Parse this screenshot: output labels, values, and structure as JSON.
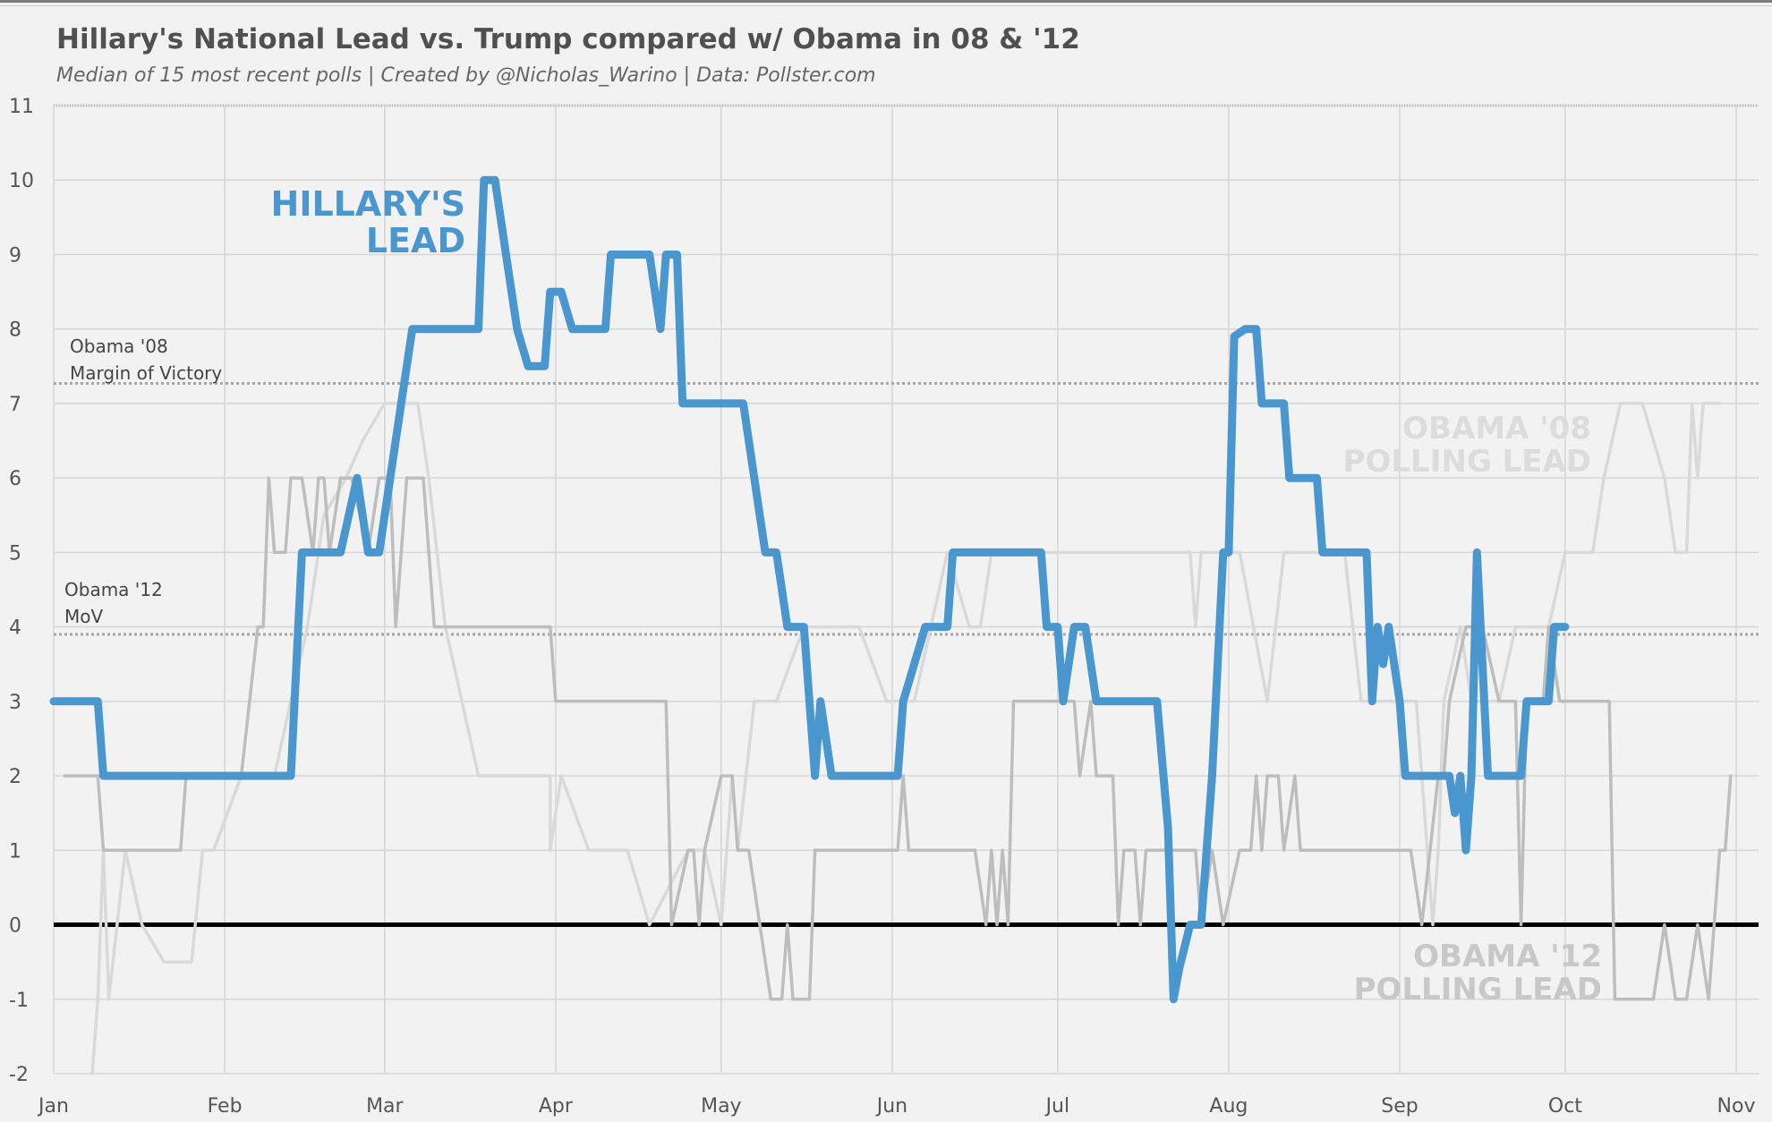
{
  "title": "Hillary's National Lead vs. Trump compared w/ Obama in 08 & '12",
  "subtitle": "Median of 15 most recent polls | Created by @Nicholas_Warino | Data: Pollster.com",
  "colors": {
    "hillary": "#4a97cf",
    "obama08": "#d9d9d9",
    "obama12": "#bdbdbd",
    "zero": "#000000",
    "grid": "#d6d6d6",
    "ref": "#a6a6a6"
  },
  "chart_data": {
    "type": "line",
    "title": "Hillary's National Lead vs. Trump compared w/ Obama in 08 & '12",
    "subtitle": "Median of 15 most recent polls | Created by @Nicholas_Warino | Data: Pollster.com",
    "xlabel": "",
    "ylabel": "",
    "x_unit": "day of year (Jan 1 = 0)",
    "xlim": [
      0,
      307
    ],
    "ylim": [
      -2,
      11
    ],
    "xticks": [
      {
        "x": 0,
        "label": "Jan"
      },
      {
        "x": 31,
        "label": "Feb"
      },
      {
        "x": 60,
        "label": "Mar"
      },
      {
        "x": 91,
        "label": "Apr"
      },
      {
        "x": 121,
        "label": "May"
      },
      {
        "x": 152,
        "label": "Jun"
      },
      {
        "x": 182,
        "label": "Jul"
      },
      {
        "x": 213,
        "label": "Aug"
      },
      {
        "x": 244,
        "label": "Sep"
      },
      {
        "x": 274,
        "label": "Oct"
      },
      {
        "x": 305,
        "label": "Nov"
      }
    ],
    "yticks": [
      "-2",
      "-1",
      "0",
      "1",
      "2",
      "3",
      "4",
      "5",
      "6",
      "7",
      "8",
      "9",
      "10",
      "11"
    ],
    "grid": true,
    "reference_lines": [
      {
        "y": 7.27,
        "label_lines": [
          "Obama '08",
          "Margin of Victory"
        ]
      },
      {
        "y": 3.9,
        "label_lines": [
          "Obama '12",
          "MoV"
        ]
      },
      {
        "y": 0,
        "label_lines": []
      }
    ],
    "series": [
      {
        "name": "HILLARY'S LEAD",
        "label_lines": [
          "HILLARY'S",
          "LEAD"
        ],
        "points": [
          [
            0,
            3
          ],
          [
            8,
            3
          ],
          [
            9,
            2
          ],
          [
            43,
            2
          ],
          [
            45,
            5
          ],
          [
            52,
            5
          ],
          [
            55,
            6
          ],
          [
            57,
            5
          ],
          [
            59,
            5
          ],
          [
            63,
            7
          ],
          [
            65,
            8
          ],
          [
            77,
            8
          ],
          [
            78,
            10
          ],
          [
            80,
            10
          ],
          [
            82,
            9
          ],
          [
            84,
            8
          ],
          [
            86,
            7.5
          ],
          [
            89,
            7.5
          ],
          [
            90,
            8.5
          ],
          [
            92,
            8.5
          ],
          [
            94,
            8
          ],
          [
            100,
            8
          ],
          [
            101,
            9
          ],
          [
            108,
            9
          ],
          [
            110,
            8
          ],
          [
            111,
            9
          ],
          [
            113,
            9
          ],
          [
            114,
            7
          ],
          [
            125,
            7
          ],
          [
            129,
            5
          ],
          [
            131,
            5
          ],
          [
            133,
            4
          ],
          [
            136,
            4
          ],
          [
            138,
            2
          ],
          [
            139,
            3
          ],
          [
            141,
            2
          ],
          [
            153,
            2
          ],
          [
            154,
            3
          ],
          [
            158,
            4
          ],
          [
            162,
            4
          ],
          [
            163,
            5
          ],
          [
            179,
            5
          ],
          [
            180,
            4
          ],
          [
            182,
            4
          ],
          [
            183,
            3
          ],
          [
            185,
            4
          ],
          [
            187,
            4
          ],
          [
            189,
            3
          ],
          [
            200,
            3
          ],
          [
            202,
            1.3
          ],
          [
            203,
            -1
          ],
          [
            204,
            -0.6
          ],
          [
            206,
            0
          ],
          [
            208,
            0
          ],
          [
            210,
            2
          ],
          [
            212,
            5
          ],
          [
            213,
            5
          ],
          [
            214,
            7.9
          ],
          [
            216,
            8
          ],
          [
            218,
            8
          ],
          [
            219,
            7
          ],
          [
            223,
            7
          ],
          [
            224,
            6
          ],
          [
            229,
            6
          ],
          [
            230,
            5
          ],
          [
            238,
            5
          ],
          [
            239,
            3
          ],
          [
            240,
            4
          ],
          [
            241,
            3.5
          ],
          [
            242,
            4
          ],
          [
            244,
            3
          ],
          [
            245,
            2
          ],
          [
            253,
            2
          ],
          [
            254,
            1.5
          ],
          [
            255,
            2
          ],
          [
            256,
            1
          ],
          [
            257,
            2
          ],
          [
            258,
            5
          ],
          [
            260,
            2
          ],
          [
            266,
            2
          ],
          [
            267,
            3
          ],
          [
            271,
            3
          ],
          [
            272,
            4
          ],
          [
            274,
            4
          ]
        ]
      },
      {
        "name": "OBAMA '08 POLLING LEAD",
        "label_lines": [
          "OBAMA '08",
          "POLLING LEAD"
        ],
        "points": [
          [
            7,
            -2
          ],
          [
            8,
            -1
          ],
          [
            9,
            1
          ],
          [
            10,
            -1
          ],
          [
            13,
            1
          ],
          [
            16,
            0
          ],
          [
            20,
            -0.5
          ],
          [
            25,
            -0.5
          ],
          [
            27,
            1
          ],
          [
            29,
            1
          ],
          [
            34,
            2
          ],
          [
            40,
            2
          ],
          [
            43,
            3
          ],
          [
            46,
            4
          ],
          [
            49,
            5.5
          ],
          [
            53,
            6
          ],
          [
            56,
            6.5
          ],
          [
            60,
            7
          ],
          [
            63,
            7
          ],
          [
            66,
            7
          ],
          [
            68,
            6
          ],
          [
            71,
            4
          ],
          [
            74,
            3
          ],
          [
            77,
            2
          ],
          [
            80,
            2
          ],
          [
            84,
            2
          ],
          [
            90,
            2
          ],
          [
            90,
            1
          ],
          [
            92,
            2
          ],
          [
            97,
            1
          ],
          [
            104,
            1
          ],
          [
            108,
            0
          ],
          [
            115,
            1
          ],
          [
            118,
            1
          ],
          [
            121,
            0
          ],
          [
            123,
            2
          ],
          [
            124,
            1
          ],
          [
            127,
            3
          ],
          [
            131,
            3
          ],
          [
            136,
            4
          ],
          [
            141,
            4
          ],
          [
            146,
            4
          ],
          [
            151,
            3
          ],
          [
            156,
            3
          ],
          [
            159,
            4
          ],
          [
            162,
            5
          ],
          [
            166,
            4
          ],
          [
            168,
            4
          ],
          [
            170,
            5
          ],
          [
            178,
            5
          ],
          [
            183,
            5
          ],
          [
            186,
            5
          ],
          [
            190,
            5
          ],
          [
            203,
            5
          ],
          [
            206,
            5
          ],
          [
            207,
            4
          ],
          [
            208,
            5
          ],
          [
            215,
            5
          ],
          [
            220,
            3
          ],
          [
            223,
            5
          ],
          [
            234,
            5
          ],
          [
            237,
            3
          ],
          [
            245,
            3
          ],
          [
            247,
            3
          ],
          [
            248,
            2
          ],
          [
            249,
            1
          ],
          [
            250,
            0
          ],
          [
            251,
            1
          ],
          [
            252,
            3
          ],
          [
            255,
            4
          ],
          [
            257,
            3
          ],
          [
            262,
            3
          ],
          [
            265,
            4
          ],
          [
            271,
            4
          ],
          [
            274,
            5
          ],
          [
            279,
            5
          ],
          [
            281,
            6
          ],
          [
            284,
            7
          ],
          [
            288,
            7
          ],
          [
            292,
            6
          ],
          [
            294,
            5
          ],
          [
            296,
            5
          ],
          [
            297,
            7
          ],
          [
            298,
            6
          ],
          [
            299,
            7
          ],
          [
            302,
            7
          ]
        ]
      },
      {
        "name": "OBAMA '12 POLLING LEAD",
        "label_lines": [
          "OBAMA '12",
          "POLLING LEAD"
        ],
        "points": [
          [
            2,
            2
          ],
          [
            8,
            2
          ],
          [
            9,
            1
          ],
          [
            23,
            1
          ],
          [
            24,
            2
          ],
          [
            34,
            2
          ],
          [
            37,
            4
          ],
          [
            38,
            4
          ],
          [
            39,
            6
          ],
          [
            40,
            5
          ],
          [
            42,
            5
          ],
          [
            43,
            6
          ],
          [
            45,
            6
          ],
          [
            47,
            5
          ],
          [
            48,
            6
          ],
          [
            49,
            6
          ],
          [
            50,
            5
          ],
          [
            52,
            6
          ],
          [
            54,
            6
          ],
          [
            57,
            5
          ],
          [
            59,
            6
          ],
          [
            61,
            6
          ],
          [
            62,
            4
          ],
          [
            64,
            6
          ],
          [
            67,
            6
          ],
          [
            69,
            4
          ],
          [
            80,
            4
          ],
          [
            90,
            4
          ],
          [
            91,
            3
          ],
          [
            111,
            3
          ],
          [
            112,
            0
          ],
          [
            115,
            1
          ],
          [
            116,
            1
          ],
          [
            117,
            0
          ],
          [
            118,
            1
          ],
          [
            121,
            2
          ],
          [
            123,
            2
          ],
          [
            124,
            1
          ],
          [
            126,
            1
          ],
          [
            128,
            0
          ],
          [
            130,
            -1
          ],
          [
            132,
            -1
          ],
          [
            133,
            0
          ],
          [
            134,
            -1
          ],
          [
            137,
            -1
          ],
          [
            138,
            1
          ],
          [
            147,
            1
          ],
          [
            153,
            1
          ],
          [
            154,
            2
          ],
          [
            155,
            1
          ],
          [
            158,
            1
          ],
          [
            167,
            1
          ],
          [
            169,
            0
          ],
          [
            170,
            1
          ],
          [
            171,
            0
          ],
          [
            172,
            1
          ],
          [
            173,
            0
          ],
          [
            174,
            3
          ],
          [
            183,
            3
          ],
          [
            185,
            3
          ],
          [
            186,
            2
          ],
          [
            188,
            3
          ],
          [
            189,
            2
          ],
          [
            192,
            2
          ],
          [
            193,
            0
          ],
          [
            194,
            1
          ],
          [
            196,
            1
          ],
          [
            197,
            0
          ],
          [
            198,
            1
          ],
          [
            200,
            1
          ],
          [
            204,
            1
          ],
          [
            207,
            1
          ],
          [
            208,
            0
          ],
          [
            210,
            1
          ],
          [
            212,
            0
          ],
          [
            215,
            1
          ],
          [
            217,
            1
          ],
          [
            218,
            2
          ],
          [
            219,
            1
          ],
          [
            220,
            2
          ],
          [
            222,
            2
          ],
          [
            223,
            1
          ],
          [
            225,
            2
          ],
          [
            226,
            1
          ],
          [
            237,
            1
          ],
          [
            246,
            1
          ],
          [
            248,
            0
          ],
          [
            251,
            2
          ],
          [
            252,
            2
          ],
          [
            253,
            3
          ],
          [
            256,
            4
          ],
          [
            259,
            4
          ],
          [
            262,
            3
          ],
          [
            265,
            3
          ],
          [
            266,
            0
          ],
          [
            267,
            3
          ],
          [
            270,
            3
          ],
          [
            271,
            4
          ],
          [
            273,
            3
          ],
          [
            276,
            3
          ],
          [
            279,
            3
          ],
          [
            282,
            3
          ],
          [
            283,
            -1
          ],
          [
            290,
            -1
          ],
          [
            292,
            0
          ],
          [
            294,
            -1
          ],
          [
            296,
            -1
          ],
          [
            298,
            0
          ],
          [
            300,
            -1
          ],
          [
            302,
            1
          ],
          [
            303,
            1
          ],
          [
            304,
            2
          ]
        ]
      }
    ]
  }
}
